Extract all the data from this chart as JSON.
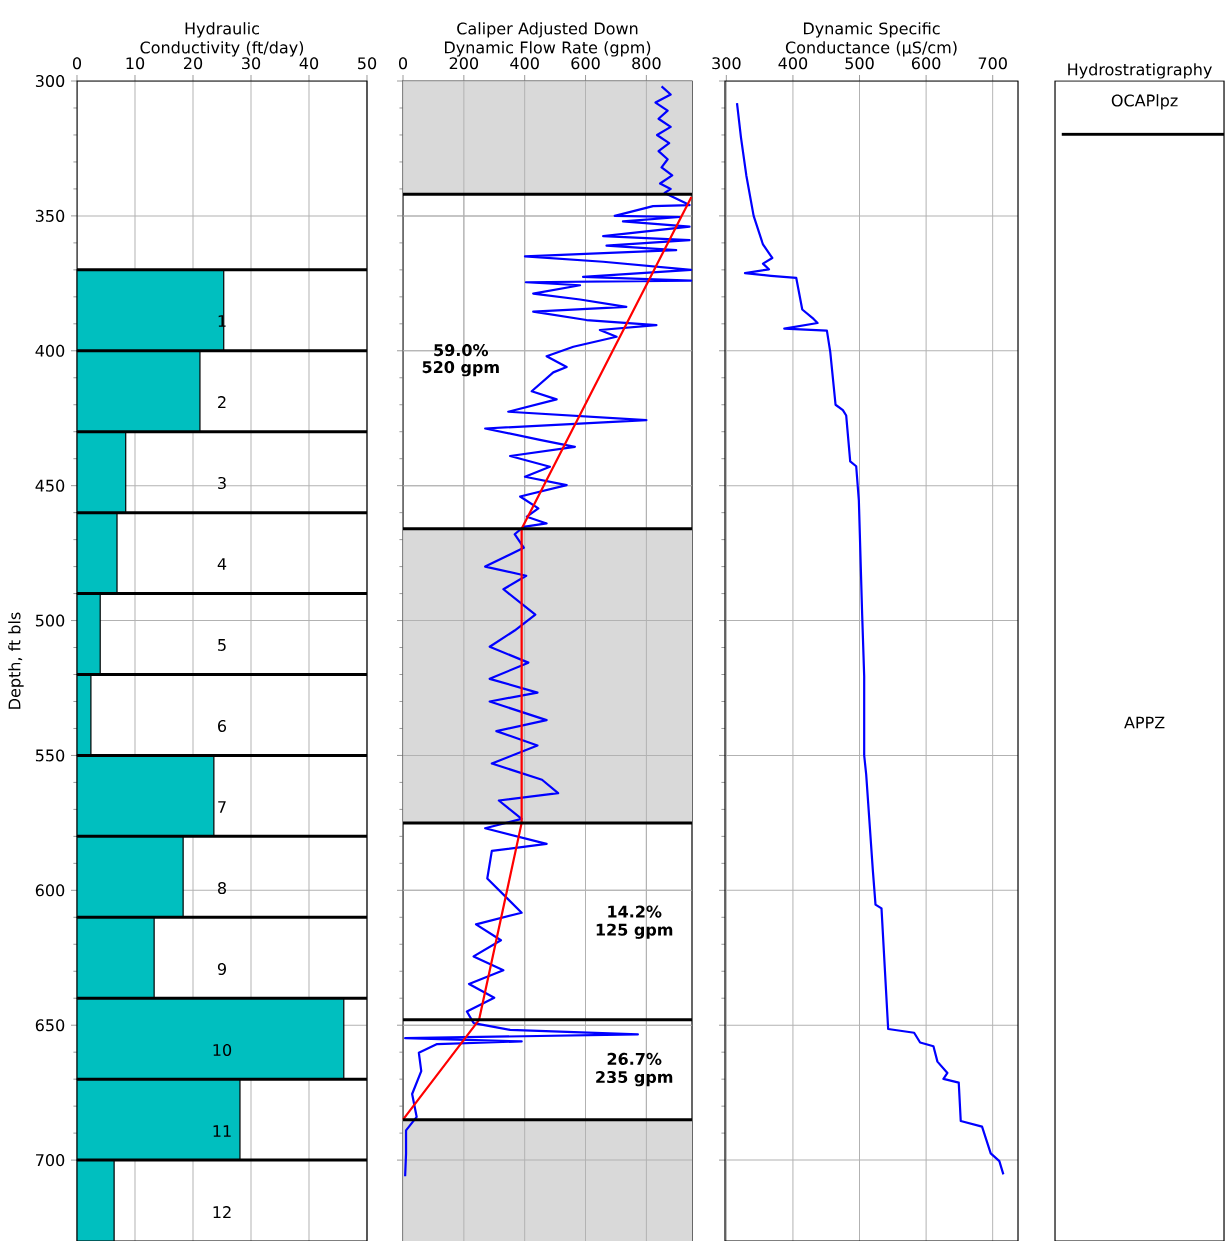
{
  "chart_data": [
    {
      "type": "bar",
      "orientation": "horizontal",
      "title": "Hydraulic Conductivity (ft/day)",
      "ylabel": "Depth, ft bls",
      "color": "#00bfbf",
      "x": [
        385,
        415,
        445,
        475,
        505,
        535,
        565,
        595,
        625,
        655,
        685,
        715
      ],
      "values": [
        25.3,
        21.2,
        8.4,
        6.9,
        4.0,
        2.4,
        23.6,
        18.3,
        13.3,
        46.0,
        28.1,
        6.4
      ],
      "annotations": [
        "1",
        "2",
        "3",
        "4",
        "5",
        "6",
        "7",
        "8",
        "9",
        "10",
        "11",
        "12"
      ],
      "xlim": [
        0,
        50
      ],
      "xticks": [
        0,
        10,
        20,
        30,
        40,
        50
      ],
      "ylim": [
        730,
        300
      ],
      "yticks": [
        300,
        350,
        400,
        450,
        500,
        550,
        600,
        650,
        700
      ],
      "grid": true,
      "ref_lines": [
        {
          "axis": "y",
          "value": 370
        },
        {
          "axis": "y",
          "value": 400
        },
        {
          "axis": "y",
          "value": 430
        },
        {
          "axis": "y",
          "value": 460
        },
        {
          "axis": "y",
          "value": 490
        },
        {
          "axis": "y",
          "value": 520
        },
        {
          "axis": "y",
          "value": 550
        },
        {
          "axis": "y",
          "value": 580
        },
        {
          "axis": "y",
          "value": 610
        },
        {
          "axis": "y",
          "value": 640
        },
        {
          "axis": "y",
          "value": 670
        },
        {
          "axis": "y",
          "value": 700
        }
      ]
    },
    {
      "type": "line",
      "title": "Caliper Adjusted Down Dynamic Flow Rate (gpm)",
      "xlim": [
        0,
        950
      ],
      "xticks": [
        0,
        200,
        400,
        600,
        800
      ],
      "ylim": [
        730,
        300
      ],
      "yticks": [
        300,
        350,
        400,
        450,
        500,
        550,
        600,
        650,
        700
      ],
      "grid": true,
      "tick_labels": "x",
      "series": [
        {
          "color": "#0000ff",
          "x": [
            850,
            880,
            830,
            870,
            840,
            880,
            835,
            875,
            840,
            870,
            850,
            885,
            845,
            880,
            860,
            942,
            822,
            696,
            910,
            723,
            942,
            658,
            942,
            669,
            898,
            401,
            658,
            947,
            592,
            947,
            404,
            582,
            428,
            582,
            734,
            428,
            603,
            833,
            647,
            702,
            560,
            472,
            538,
            494,
            423,
            505,
            346,
            800,
            270,
            450,
            565,
            352,
            483,
            401,
            538,
            385,
            445,
            407,
            472,
            396,
            367,
            397,
            270,
            405,
            330,
            435,
            367,
            285,
            412,
            285,
            442,
            285,
            472,
            307,
            442,
            292,
            457,
            510,
            315,
            390,
            270,
            472,
            292,
            277,
            390,
            240,
            322,
            232,
            330,
            217,
            300,
            210,
            232,
            352,
            772,
            7,
            390,
            112,
            52,
            60,
            30,
            45,
            10,
            10,
            7
          ],
          "values": [
            302,
            305,
            308,
            311,
            314,
            317,
            320,
            323,
            326,
            329,
            332,
            335,
            338,
            340,
            341.5,
            346,
            346.4,
            350,
            350.4,
            352,
            354,
            357.5,
            359,
            361,
            362.7,
            365,
            367,
            370,
            372.6,
            374,
            374.6,
            375.7,
            378.8,
            381,
            383.7,
            385.5,
            388.6,
            390.5,
            392.3,
            394.8,
            398.5,
            402,
            406,
            408,
            415,
            418,
            422.6,
            425.7,
            428.8,
            433,
            435.6,
            439,
            443,
            446.7,
            449.8,
            454,
            458.4,
            461.5,
            464,
            465.3,
            468,
            473,
            480,
            483.4,
            488.4,
            497.8,
            503.7,
            509.7,
            515.6,
            521.6,
            526.7,
            530,
            536.9,
            541,
            546.3,
            553,
            559,
            564,
            566.7,
            573.5,
            577,
            582.8,
            585.4,
            595.6,
            608.3,
            612.6,
            618.5,
            624.5,
            629.6,
            634.7,
            639.8,
            644.9,
            649.2,
            651.7,
            653.4,
            654.8,
            656,
            657,
            660.2,
            667,
            675.5,
            684,
            689,
            697.6,
            706
          ]
        },
        {
          "color": "#ff0000",
          "x": [
            948,
            390,
            390,
            250,
            0
          ],
          "values": [
            343,
            466,
            575,
            648,
            685
          ]
        }
      ],
      "bands": [
        {
          "axis": "y",
          "from": 300,
          "to": 342,
          "color": "#d9d9d9"
        },
        {
          "axis": "y",
          "from": 466,
          "to": 575,
          "color": "#d9d9d9"
        },
        {
          "axis": "y",
          "from": 685,
          "to": 730,
          "color": "#d9d9d9"
        }
      ],
      "ref_lines": [
        {
          "axis": "y",
          "value": 342
        },
        {
          "axis": "y",
          "value": 466
        },
        {
          "axis": "y",
          "value": 575
        },
        {
          "axis": "y",
          "value": 648
        },
        {
          "axis": "y",
          "value": 685
        }
      ],
      "annotations": [
        "59.0%",
        "520 gpm",
        "14.2%",
        "125 gpm",
        "26.7%",
        "235 gpm"
      ]
    },
    {
      "type": "line",
      "title": "Dynamic Specific Conductance (µS/cm)",
      "xlim": [
        298,
        738
      ],
      "xticks": [
        300,
        400,
        500,
        600,
        700
      ],
      "ylim": [
        730,
        300
      ],
      "yticks": [
        300,
        350,
        400,
        450,
        500,
        550,
        600,
        650,
        700
      ],
      "grid": true,
      "tick_labels": "x",
      "series": [
        {
          "color": "#0000ff",
          "x": [
            316,
            322,
            330,
            341,
            355,
            369,
            355,
            364,
            328,
            367,
            405,
            408,
            414,
            431,
            437,
            387,
            451,
            456,
            464,
            475,
            480,
            486,
            495,
            499,
            504,
            507,
            507,
            510,
            520,
            524,
            533,
            543,
            582,
            591,
            611,
            617,
            632,
            626,
            649,
            652,
            684,
            697,
            710,
            716
          ],
          "values": [
            308.2,
            321,
            335,
            350,
            360.6,
            365.6,
            367.7,
            369.8,
            371.2,
            372.2,
            373,
            376.9,
            384.7,
            388.2,
            389.7,
            391.8,
            392.5,
            400.3,
            420,
            422,
            424,
            441,
            442.8,
            455.5,
            498,
            520.7,
            550,
            557,
            592.6,
            605.3,
            606.7,
            651.4,
            652.8,
            656.4,
            657.8,
            663.5,
            667.7,
            669.9,
            671.3,
            685.5,
            687.6,
            697.5,
            700.4,
            705.3
          ]
        }
      ]
    },
    {
      "type": "other",
      "title": "Hydrostratigraphy",
      "annotations": [
        "OCAPlpz",
        "APPZ"
      ]
    }
  ]
}
